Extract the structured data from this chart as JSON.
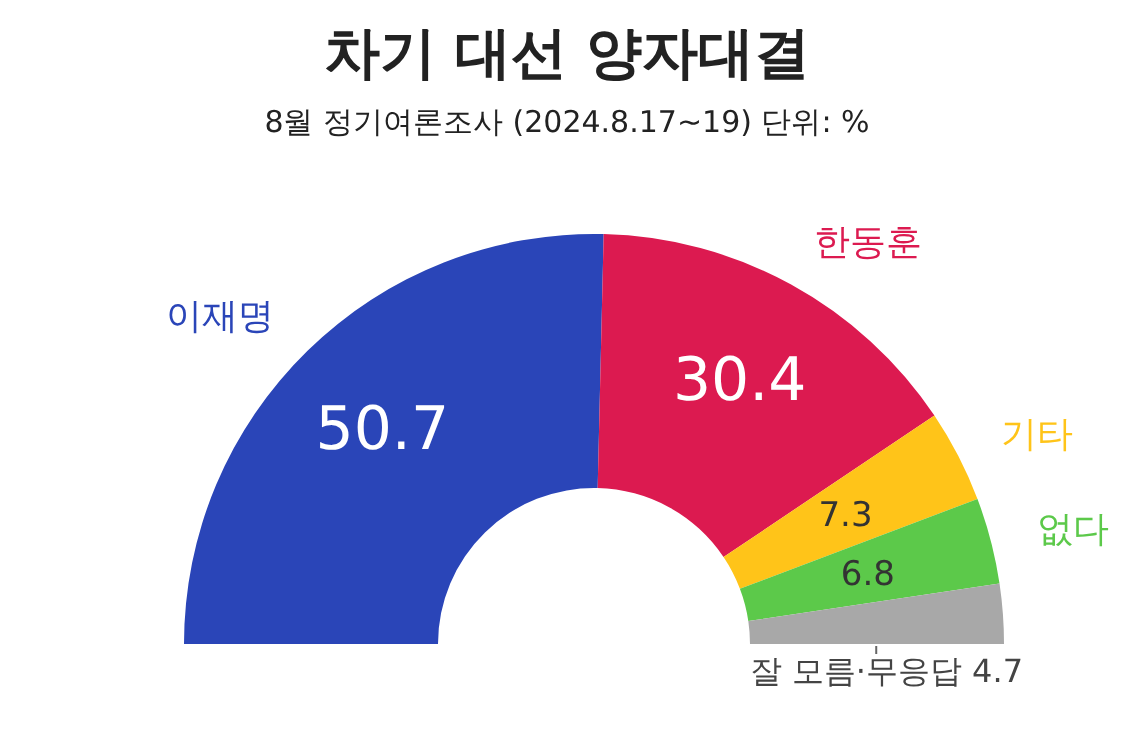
{
  "chart_data": {
    "type": "donut",
    "title": "차기 대선 양자대결",
    "subtitle": "8월 정기여론조사 (2024.8.17~19) 단위: %",
    "categories": [
      "이재명",
      "한동훈",
      "기타",
      "없다",
      "잘 모름·무응답"
    ],
    "values": [
      50.7,
      30.4,
      7.3,
      6.8,
      4.7
    ],
    "colors": [
      "#2a45b8",
      "#dc1a50",
      "#ffc419",
      "#5cc94a",
      "#a8a8a8"
    ],
    "data_labels": true
  }
}
